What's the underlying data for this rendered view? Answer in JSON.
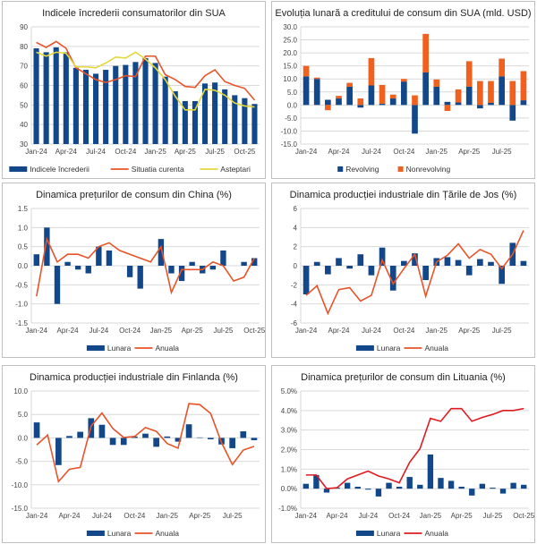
{
  "colors": {
    "bar": "#12488a",
    "line": "#e8542a",
    "yellow": "#e3d83c",
    "red": "#de1b22",
    "nonrev": "#f0601e",
    "grid": "#d9d9d9"
  },
  "chart_data": [
    {
      "type": "bar+line",
      "title": "Indicele încrederii consumatorilor din SUA",
      "ylim": [
        30,
        90
      ],
      "ystep": 10,
      "ydecimals": 0,
      "grid": true,
      "legend": "bottom",
      "categories": [
        "Jan-24",
        "Feb-24",
        "Mar-24",
        "Apr-24",
        "May-24",
        "Jun-24",
        "Jul-24",
        "Aug-24",
        "Sep-24",
        "Oct-24",
        "Nov-24",
        "Dec-24",
        "Jan-25",
        "Feb-25",
        "Mar-25",
        "Apr-25",
        "May-25",
        "Jun-25",
        "Jul-25",
        "Aug-25",
        "Sep-25",
        "Oct-25",
        "Nov-25"
      ],
      "xtick_labels": [
        "Jan-24",
        "Apr-24",
        "Jul-24",
        "Oct-24",
        "Jan-25",
        "Apr-25",
        "Jul-25",
        "Oct-25"
      ],
      "series": [
        {
          "name": "Indicele încrederii",
          "kind": "bar",
          "color": "bar",
          "values": [
            79,
            77,
            79.5,
            77,
            69,
            68,
            66,
            68,
            70,
            70.5,
            72,
            74,
            71.5,
            64.5,
            57,
            52,
            52,
            61,
            61.5,
            58,
            55,
            53.5,
            50.5
          ]
        },
        {
          "name": "Situatia curenta",
          "kind": "line",
          "color": "line",
          "values": [
            82,
            79.5,
            82.5,
            79,
            69,
            66,
            63,
            61.5,
            63,
            65,
            64.5,
            75,
            75,
            65.5,
            63,
            59.5,
            59,
            65,
            68,
            62,
            60,
            58.5,
            52.5
          ]
        },
        {
          "name": "Asteptari",
          "kind": "line",
          "color": "yellow",
          "values": [
            77,
            75,
            77,
            76.5,
            69.5,
            69.5,
            69,
            71.5,
            74.5,
            74,
            77,
            73.5,
            69,
            63,
            54.5,
            47.5,
            47.5,
            58,
            57.5,
            55,
            51,
            49.5,
            49
          ]
        }
      ]
    },
    {
      "type": "stacked-bar",
      "title": "Evoluția lunară a creditului de consum din SUA (mld. USD)",
      "ylim": [
        -15,
        30
      ],
      "ystep": 5,
      "ydecimals": 1,
      "grid": true,
      "legend": "bottom",
      "categories": [
        "Jan-24",
        "Feb-24",
        "Mar-24",
        "Apr-24",
        "May-24",
        "Jun-24",
        "Jul-24",
        "Aug-24",
        "Sep-24",
        "Oct-24",
        "Nov-24",
        "Dec-24",
        "Jan-25",
        "Feb-25",
        "Mar-25",
        "Apr-25",
        "May-25",
        "Jun-25",
        "Jul-25",
        "Aug-25",
        "Sep-25"
      ],
      "xtick_labels": [
        "Jan-24",
        "Apr-24",
        "Jul-24",
        "Oct-24",
        "Jan-25",
        "Apr-25",
        "Jul-25"
      ],
      "series": [
        {
          "name": "Revolving",
          "kind": "bar",
          "color": "bar",
          "values": [
            11,
            10,
            2,
            2.5,
            7,
            -1,
            7.5,
            0.5,
            2.5,
            9,
            -11,
            12.5,
            7,
            1.2,
            1,
            7,
            -1.3,
            0.8,
            11,
            -6,
            1.8
          ]
        },
        {
          "name": "Nonrevolving",
          "kind": "bar",
          "color": "nonrev",
          "values": [
            4,
            0.5,
            -2,
            1,
            1.5,
            2.5,
            10.5,
            7.2,
            1.5,
            1,
            3.7,
            14.8,
            2.8,
            -2.3,
            5,
            9.8,
            9.2,
            8.4,
            6.8,
            9.2,
            11.2
          ]
        }
      ]
    },
    {
      "type": "bar+line",
      "title": "Dinamica prețurilor de consum din China (%)",
      "ylim": [
        -1.5,
        1.5
      ],
      "ystep": 0.5,
      "ydecimals": 1,
      "grid": true,
      "legend": "bottom",
      "categories": [
        "Jan-24",
        "Feb-24",
        "Mar-24",
        "Apr-24",
        "May-24",
        "Jun-24",
        "Jul-24",
        "Aug-24",
        "Sep-24",
        "Oct-24",
        "Nov-24",
        "Dec-24",
        "Jan-25",
        "Feb-25",
        "Mar-25",
        "Apr-25",
        "May-25",
        "Jun-25",
        "Jul-25",
        "Aug-25",
        "Sep-25",
        "Oct-25"
      ],
      "xtick_labels": [
        "Jan-24",
        "Apr-24",
        "Jul-24",
        "Oct-24",
        "Jan-25",
        "Apr-25",
        "Jul-25",
        "Oct-25"
      ],
      "series": [
        {
          "name": "Lunara",
          "kind": "bar",
          "color": "bar",
          "values": [
            0.3,
            1.0,
            -1.0,
            0.1,
            -0.1,
            -0.2,
            0.5,
            0.4,
            0.0,
            -0.3,
            -0.6,
            0.0,
            0.7,
            -0.2,
            -0.4,
            0.1,
            -0.2,
            -0.1,
            0.4,
            0.0,
            0.1,
            0.2
          ]
        },
        {
          "name": "Anuala",
          "kind": "line",
          "color": "line",
          "values": [
            -0.8,
            0.7,
            0.1,
            0.3,
            0.3,
            0.2,
            0.5,
            0.6,
            0.4,
            0.3,
            0.2,
            0.1,
            0.5,
            -0.7,
            -0.1,
            -0.1,
            -0.1,
            0.1,
            0.0,
            -0.4,
            -0.3,
            0.2
          ]
        }
      ]
    },
    {
      "type": "bar+line",
      "title": "Dinamica producției industriale din Țările de Jos (%)",
      "ylim": [
        -6,
        6
      ],
      "ystep": 2,
      "ydecimals": 0,
      "grid": true,
      "legend": "bottom",
      "categories": [
        "Jan-24",
        "Feb-24",
        "Mar-24",
        "Apr-24",
        "May-24",
        "Jun-24",
        "Jul-24",
        "Aug-24",
        "Sep-24",
        "Oct-24",
        "Nov-24",
        "Dec-24",
        "Jan-25",
        "Feb-25",
        "Mar-25",
        "Apr-25",
        "May-25",
        "Jun-25",
        "Jul-25",
        "Aug-25",
        "Sep-25"
      ],
      "xtick_labels": [
        "Jan-24",
        "Apr-24",
        "Jul-24",
        "Oct-24",
        "Jan-25",
        "Apr-25",
        "Jul-25"
      ],
      "series": [
        {
          "name": "Lunara",
          "kind": "bar",
          "color": "bar",
          "values": [
            -3.0,
            0.4,
            -0.9,
            0.8,
            -0.3,
            1.2,
            -1.0,
            1.9,
            -2.6,
            0.5,
            1.3,
            -1.5,
            0.8,
            0.9,
            0.6,
            -1.0,
            0.7,
            0.4,
            -1.9,
            2.4,
            0.5
          ]
        },
        {
          "name": "Anuala",
          "kind": "line",
          "color": "line",
          "values": [
            -3.1,
            -2.1,
            -5.0,
            -2.5,
            -2.3,
            -3.7,
            -3.1,
            0.6,
            -1.9,
            -0.3,
            1.2,
            -3.2,
            0.4,
            1.1,
            2.3,
            0.8,
            1.7,
            1.2,
            -0.3,
            1.2,
            3.7
          ]
        }
      ]
    },
    {
      "type": "bar+line",
      "title": "Dinamica producției industriale din Finlanda (%)",
      "ylim": [
        -15,
        10
      ],
      "ystep": 5,
      "ydecimals": 1,
      "grid": true,
      "legend": "bottom",
      "categories": [
        "Jan-24",
        "Feb-24",
        "Mar-24",
        "Apr-24",
        "May-24",
        "Jun-24",
        "Jul-24",
        "Aug-24",
        "Sep-24",
        "Oct-24",
        "Nov-24",
        "Dec-24",
        "Jan-25",
        "Feb-25",
        "Mar-25",
        "Apr-25",
        "May-25",
        "Jun-25",
        "Jul-25",
        "Aug-25",
        "Sep-25"
      ],
      "xtick_labels": [
        "Jan-24",
        "Apr-24",
        "Jul-24",
        "Oct-24",
        "Jan-25",
        "Apr-25",
        "Jul-25"
      ],
      "series": [
        {
          "name": "Lunara",
          "kind": "bar",
          "color": "bar",
          "values": [
            3.3,
            0,
            -5.8,
            0.4,
            1.3,
            4.2,
            2.8,
            -1.5,
            -1.5,
            0.3,
            0.9,
            -1.9,
            0.3,
            -0.8,
            2.9,
            0.1,
            -0.3,
            -1.4,
            -2.2,
            1.4,
            -0.5
          ]
        },
        {
          "name": "Anuala",
          "kind": "line",
          "color": "line",
          "values": [
            -1.5,
            0.6,
            -9.3,
            -6.7,
            -6.3,
            2.5,
            5.3,
            2.0,
            0.1,
            0.3,
            2.2,
            1.4,
            -1.2,
            -2.2,
            7.3,
            7.1,
            5.2,
            -1.0,
            -5.7,
            -2.6,
            -1.8
          ]
        }
      ]
    },
    {
      "type": "bar+line",
      "title": "Dinamica prețurilor de consum din Lituania (%)",
      "ylim": [
        -1,
        5
      ],
      "ystep": 1,
      "ydecimals": 1,
      "ysuffix": "%",
      "grid": true,
      "legend": "bottom",
      "categories": [
        "Jan-24",
        "Feb-24",
        "Mar-24",
        "Apr-24",
        "May-24",
        "Jun-24",
        "Jul-24",
        "Aug-24",
        "Sep-24",
        "Oct-24",
        "Nov-24",
        "Dec-24",
        "Jan-25",
        "Feb-25",
        "Mar-25",
        "Apr-25",
        "May-25",
        "Jun-25",
        "Jul-25",
        "Aug-25",
        "Sep-25",
        "Oct-25"
      ],
      "xtick_labels": [
        "Jan-24",
        "Apr-24",
        "Jul-24",
        "Oct-24",
        "Jan-25",
        "Apr-25",
        "Jul-25",
        "Oct-25"
      ],
      "series": [
        {
          "name": "Lunara",
          "kind": "bar",
          "color": "bar",
          "values": [
            0.25,
            0.7,
            -0.2,
            0.05,
            0.3,
            0.1,
            -0.05,
            -0.4,
            0.3,
            0.1,
            0.6,
            0.2,
            1.75,
            0.55,
            0.4,
            0.1,
            -0.35,
            0.25,
            0.05,
            -0.25,
            0.3,
            0.2
          ]
        },
        {
          "name": "Anuala",
          "kind": "line",
          "color": "red",
          "values": [
            0.7,
            0.7,
            0.0,
            0.05,
            0.5,
            0.7,
            0.9,
            0.65,
            0.5,
            0.3,
            1.35,
            2.05,
            3.6,
            3.45,
            4.1,
            4.1,
            3.45,
            3.65,
            3.8,
            4.0,
            4.0,
            4.1
          ]
        }
      ]
    }
  ]
}
